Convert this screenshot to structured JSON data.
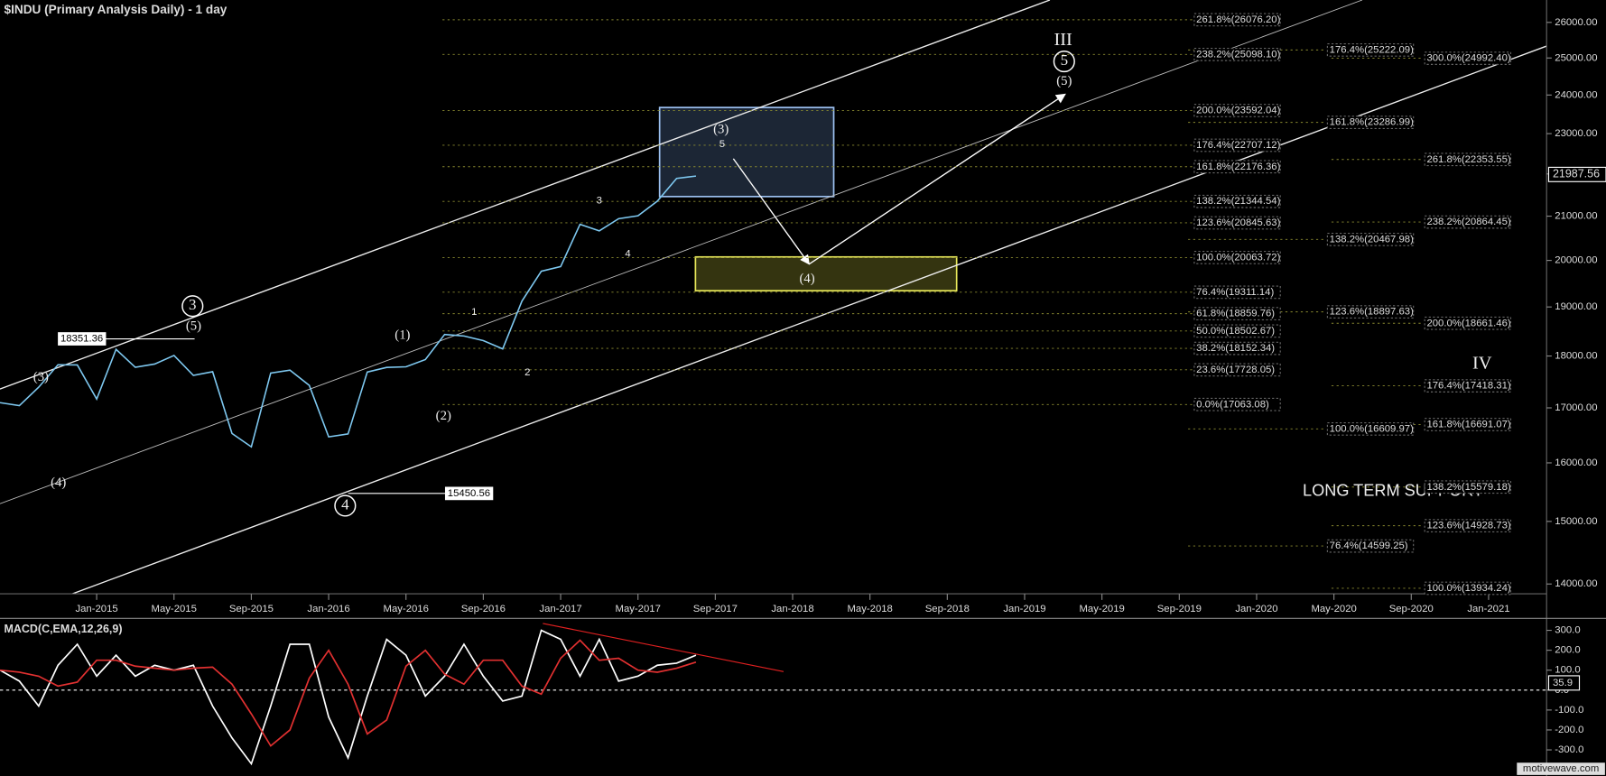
{
  "chart_data": [
    {
      "type": "line",
      "title": "$INDU (Primary Analysis Daily) - 1 day",
      "log_scale": true,
      "x": [
        "2014-08",
        "2014-09",
        "2014-10",
        "2014-11",
        "2014-12",
        "2015-01",
        "2015-02",
        "2015-03",
        "2015-04",
        "2015-05",
        "2015-06",
        "2015-07",
        "2015-08",
        "2015-09",
        "2015-10",
        "2015-11",
        "2015-12",
        "2016-01",
        "2016-02",
        "2016-03",
        "2016-04",
        "2016-05",
        "2016-06",
        "2016-07",
        "2016-08",
        "2016-09",
        "2016-10",
        "2016-11",
        "2016-12",
        "2017-01",
        "2017-02",
        "2017-03",
        "2017-04",
        "2017-05",
        "2017-06",
        "2017-07",
        "2017-08"
      ],
      "values": [
        17098,
        17043,
        17391,
        17828,
        17823,
        17165,
        18133,
        17776,
        17841,
        18011,
        17620,
        17690,
        16528,
        16285,
        17664,
        17720,
        17425,
        16466,
        16517,
        17685,
        17774,
        17787,
        17930,
        18432,
        18401,
        18308,
        18142,
        19124,
        19763,
        19864,
        20812,
        20663,
        20941,
        21009,
        21350,
        21891,
        21948
      ],
      "color": "#7ec8f0",
      "xlim": [
        "2014-08",
        "2021-04"
      ],
      "xticks": [
        {
          "value": "2015-01",
          "label": "Jan-2015"
        },
        {
          "value": "2015-05",
          "label": "May-2015"
        },
        {
          "value": "2015-09",
          "label": "Sep-2015"
        },
        {
          "value": "2016-01",
          "label": "Jan-2016"
        },
        {
          "value": "2016-05",
          "label": "May-2016"
        },
        {
          "value": "2016-09",
          "label": "Sep-2016"
        },
        {
          "value": "2017-01",
          "label": "Jan-2017"
        },
        {
          "value": "2017-05",
          "label": "May-2017"
        },
        {
          "value": "2017-09",
          "label": "Sep-2017"
        },
        {
          "value": "2018-01",
          "label": "Jan-2018"
        },
        {
          "value": "2018-05",
          "label": "May-2018"
        },
        {
          "value": "2018-09",
          "label": "Sep-2018"
        },
        {
          "value": "2019-01",
          "label": "Jan-2019"
        },
        {
          "value": "2019-05",
          "label": "May-2019"
        },
        {
          "value": "2019-09",
          "label": "Sep-2019"
        },
        {
          "value": "2020-01",
          "label": "Jan-2020"
        },
        {
          "value": "2020-05",
          "label": "May-2020"
        },
        {
          "value": "2020-09",
          "label": "Sep-2020"
        },
        {
          "value": "2021-01",
          "label": "Jan-2021"
        }
      ],
      "ylim": [
        13850,
        26650
      ],
      "yticks": [
        {
          "value": 14000,
          "label": "14000.00"
        },
        {
          "value": 15000,
          "label": "15000.00"
        },
        {
          "value": 16000,
          "label": "16000.00"
        },
        {
          "value": 17000,
          "label": "17000.00"
        },
        {
          "value": 18000,
          "label": "18000.00"
        },
        {
          "value": 19000,
          "label": "19000.00"
        },
        {
          "value": 20000,
          "label": "20000.00"
        },
        {
          "value": 21000,
          "label": "21000.00"
        },
        {
          "value": 22000,
          "label": "22000.00"
        },
        {
          "value": 23000,
          "label": "23000.00"
        },
        {
          "value": 24000,
          "label": "24000.00"
        },
        {
          "value": 25000,
          "label": "25000.00"
        },
        {
          "value": 26000,
          "label": "26000.00"
        }
      ],
      "last_value": 21987.56,
      "price_markers": [
        18351.36,
        15450.56
      ],
      "fib_levels": [
        [
          {
            "value": 26076.2,
            "label": "261.8%(26076.20)"
          },
          {
            "value": 25098.1,
            "label": "238.2%(25098.10)"
          },
          {
            "value": 23592.04,
            "label": "200.0%(23592.04)"
          },
          {
            "value": 22707.12,
            "label": "176.4%(22707.12)"
          },
          {
            "value": 22176.36,
            "label": "161.8%(22176.36)"
          },
          {
            "value": 21344.54,
            "label": "138.2%(21344.54)"
          },
          {
            "value": 20845.63,
            "label": "123.6%(20845.63)"
          },
          {
            "value": 20063.72,
            "label": "100.0%(20063.72)"
          },
          {
            "value": 19311.14,
            "label": "76.4%(19311.14)"
          },
          {
            "value": 18859.76,
            "label": "61.8%(18859.76)"
          },
          {
            "value": 18502.67,
            "label": "50.0%(18502.67)"
          },
          {
            "value": 18152.34,
            "label": "38.2%(18152.34)"
          },
          {
            "value": 17728.05,
            "label": "23.6%(17728.05)"
          },
          {
            "value": 17063.08,
            "label": "0.0%(17063.08)"
          }
        ],
        [
          {
            "value": 25222.09,
            "label": "176.4%(25222.09)"
          },
          {
            "value": 23286.99,
            "label": "161.8%(23286.99)"
          },
          {
            "value": 20467.98,
            "label": "138.2%(20467.98)"
          },
          {
            "value": 18897.63,
            "label": "123.6%(18897.63)"
          },
          {
            "value": 16609.97,
            "label": "100.0%(16609.97)"
          },
          {
            "value": 14599.25,
            "label": "76.4%(14599.25)"
          }
        ],
        [
          {
            "value": 24992.4,
            "label": "300.0%(24992.40)"
          },
          {
            "value": 22353.55,
            "label": "261.8%(22353.55)"
          },
          {
            "value": 20864.45,
            "label": "238.2%(20864.45)"
          },
          {
            "value": 18661.46,
            "label": "200.0%(18661.46)"
          },
          {
            "value": 17418.31,
            "label": "176.4%(17418.31)"
          },
          {
            "value": 16691.07,
            "label": "161.8%(16691.07)"
          },
          {
            "value": 15579.18,
            "label": "138.2%(15579.18)"
          },
          {
            "value": 14928.73,
            "label": "123.6%(14928.73)"
          },
          {
            "value": 13934.24,
            "label": "100.0%(13934.24)"
          }
        ]
      ],
      "wave_labels": [
        "3",
        "(5)",
        "(3)",
        "(4)",
        "(1)",
        "(2)",
        "4",
        "1",
        "2",
        "3",
        "4",
        "(3)",
        "5",
        "(4)",
        "III",
        "5",
        "(5)",
        "IV",
        "LONG TERM SUPPORT"
      ],
      "watermark": "motivewave.com"
    },
    {
      "type": "line",
      "title": "MACD(C,EMA,12,26,9)",
      "x": [
        "2014-08",
        "2014-09",
        "2014-10",
        "2014-11",
        "2014-12",
        "2015-01",
        "2015-02",
        "2015-03",
        "2015-04",
        "2015-05",
        "2015-06",
        "2015-07",
        "2015-08",
        "2015-09",
        "2015-10",
        "2015-11",
        "2015-12",
        "2016-01",
        "2016-02",
        "2016-03",
        "2016-04",
        "2016-05",
        "2016-06",
        "2016-07",
        "2016-08",
        "2016-09",
        "2016-10",
        "2016-11",
        "2016-12",
        "2017-01",
        "2017-02",
        "2017-03",
        "2017-04",
        "2017-05",
        "2017-06",
        "2017-07",
        "2017-08"
      ],
      "series": [
        {
          "color": "#ffffff",
          "values": [
            100,
            45,
            -80,
            125,
            230,
            70,
            175,
            70,
            125,
            100,
            125,
            -80,
            -240,
            -370,
            -80,
            230,
            230,
            -135,
            -340,
            -30,
            255,
            175,
            -30,
            70,
            230,
            70,
            -55,
            -30,
            300,
            255,
            70,
            255,
            45,
            70,
            125,
            135,
            175
          ]
        },
        {
          "color": "#e03030",
          "values": [
            100,
            90,
            70,
            20,
            40,
            150,
            150,
            120,
            110,
            100,
            110,
            115,
            30,
            -120,
            -280,
            -200,
            60,
            200,
            30,
            -220,
            -150,
            120,
            200,
            80,
            30,
            150,
            150,
            20,
            -20,
            160,
            250,
            150,
            160,
            100,
            90,
            110,
            140
          ]
        }
      ],
      "xlim": [
        "2014-08",
        "2021-04"
      ],
      "ylim": [
        -390,
        355
      ],
      "yticks": [
        {
          "value": 300,
          "label": "300.0"
        },
        {
          "value": 200,
          "label": "200.0"
        },
        {
          "value": 100,
          "label": "100.0"
        },
        {
          "value": 0,
          "label": "0.0"
        },
        {
          "value": -100,
          "label": "-100.0"
        },
        {
          "value": -200,
          "label": "-200.0"
        },
        {
          "value": -300,
          "label": "-300.0"
        }
      ],
      "last_value": 35.9
    }
  ]
}
